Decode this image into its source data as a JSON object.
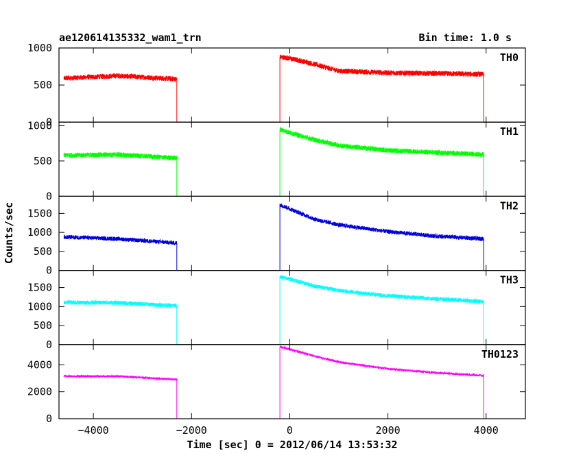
{
  "header": {
    "title": "ae120614135332_wam1_trn",
    "bin_time": "Bin time: 1.0 s"
  },
  "axes": {
    "xlabel": "Time [sec] 0 = 2012/06/14 13:53:32",
    "ylabel": "Counts/sec"
  },
  "chart_data": {
    "type": "line",
    "xlim": [
      -4700,
      4800
    ],
    "x_ticks": [
      -4000,
      -2000,
      0,
      2000,
      4000
    ],
    "x_tick_labels": [
      "−4000",
      "−2000",
      "0",
      "2000",
      "4000"
    ],
    "panels": [
      {
        "name": "TH0",
        "color": "#ff0000",
        "ylim": [
          0,
          1000
        ],
        "y_ticks": [
          0,
          500,
          1000
        ],
        "y_tick_labels": [
          "0",
          "500",
          "1000"
        ],
        "noise": 35,
        "segments": [
          {
            "x": [
              -4600,
              -3500,
              -2300
            ],
            "y": [
              590,
              625,
              580
            ]
          },
          {
            "x": [
              -2300,
              -200
            ],
            "y": [
              0,
              0
            ]
          },
          {
            "x": [
              -200,
              0,
              400,
              1000,
              2000,
              3000,
              3950
            ],
            "y": [
              880,
              860,
              800,
              690,
              665,
              655,
              645
            ]
          },
          {
            "x": [
              3950,
              4550
            ],
            "y": [
              0,
              0
            ]
          }
        ]
      },
      {
        "name": "TH1",
        "color": "#00ff00",
        "ylim": [
          0,
          1050
        ],
        "y_ticks": [
          0,
          500,
          1000
        ],
        "y_tick_labels": [
          "0",
          "500",
          "1000"
        ],
        "noise": 35,
        "segments": [
          {
            "x": [
              -4600,
              -3500,
              -2300
            ],
            "y": [
              580,
              590,
              540
            ]
          },
          {
            "x": [
              -2300,
              -200
            ],
            "y": [
              0,
              0
            ]
          },
          {
            "x": [
              -200,
              0,
              500,
              1000,
              2000,
              3000,
              3950
            ],
            "y": [
              950,
              900,
              800,
              720,
              650,
              620,
              590
            ]
          },
          {
            "x": [
              3950,
              4550
            ],
            "y": [
              0,
              0
            ]
          }
        ]
      },
      {
        "name": "TH2",
        "color": "#0000dd",
        "ylim": [
          0,
          1950
        ],
        "y_ticks": [
          0,
          500,
          1000,
          1500
        ],
        "y_tick_labels": [
          "0",
          "500",
          "1000",
          "1500"
        ],
        "noise": 55,
        "segments": [
          {
            "x": [
              -4600,
              -3500,
              -2300
            ],
            "y": [
              880,
              830,
              720
            ]
          },
          {
            "x": [
              -2300,
              -200
            ],
            "y": [
              0,
              0
            ]
          },
          {
            "x": [
              -200,
              0,
              500,
              1000,
              2000,
              3000,
              3950
            ],
            "y": [
              1730,
              1620,
              1350,
              1200,
              1020,
              900,
              830
            ]
          },
          {
            "x": [
              3950,
              4550
            ],
            "y": [
              0,
              0
            ]
          }
        ]
      },
      {
        "name": "TH3",
        "color": "#00ffff",
        "ylim": [
          0,
          1950
        ],
        "y_ticks": [
          0,
          500,
          1000,
          1500
        ],
        "y_tick_labels": [
          "0",
          "500",
          "1000",
          "1500"
        ],
        "noise": 55,
        "segments": [
          {
            "x": [
              -4600,
              -3500,
              -2300
            ],
            "y": [
              1110,
              1100,
              1020
            ]
          },
          {
            "x": [
              -2300,
              -200
            ],
            "y": [
              0,
              0
            ]
          },
          {
            "x": [
              -200,
              0,
              500,
              1000,
              2000,
              3000,
              3950
            ],
            "y": [
              1780,
              1720,
              1540,
              1420,
              1280,
              1200,
              1130
            ]
          },
          {
            "x": [
              3950,
              4550
            ],
            "y": [
              0,
              0
            ]
          }
        ]
      },
      {
        "name": "TH0123",
        "color": "#ff00ff",
        "ylim": [
          0,
          5500
        ],
        "y_ticks": [
          0,
          2000,
          4000
        ],
        "y_tick_labels": [
          "0",
          "2000",
          "4000"
        ],
        "noise": 80,
        "segments": [
          {
            "x": [
              -4600,
              -3500,
              -2300
            ],
            "y": [
              3150,
              3150,
              2900
            ]
          },
          {
            "x": [
              -2300,
              -200
            ],
            "y": [
              0,
              0
            ]
          },
          {
            "x": [
              -200,
              0,
              500,
              1000,
              2000,
              3000,
              3950
            ],
            "y": [
              5350,
              5150,
              4650,
              4200,
              3700,
              3400,
              3200
            ]
          },
          {
            "x": [
              3950,
              4550
            ],
            "y": [
              0,
              0
            ]
          }
        ]
      }
    ]
  }
}
